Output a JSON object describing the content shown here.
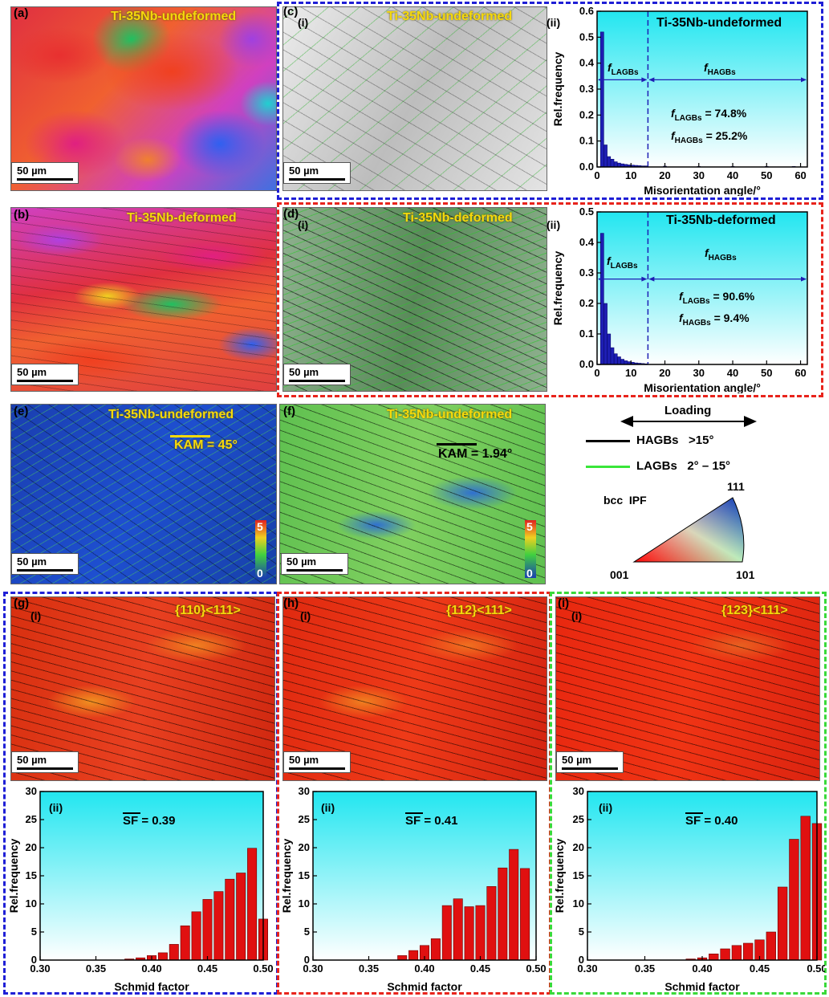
{
  "panels": {
    "a": {
      "label": "(a)",
      "title": "Ti-35Nb-undeformed",
      "scale": "50 µm"
    },
    "b": {
      "label": "(b)",
      "title": "Ti-35Nb-deformed",
      "scale": "50 µm"
    },
    "c": {
      "label": "(c)",
      "sub": "(i)",
      "title": "Ti-35Nb-undeformed",
      "scale": "50 µm"
    },
    "c2": {
      "sub": "(ii)",
      "title": "Ti-35Nb-undeformed",
      "f_lagbs": "LAGBs",
      "f_hagbs": "HAGBs",
      "val_lagbs": "= 74.8%",
      "val_hagbs": "= 25.2%"
    },
    "d": {
      "label": "(d)",
      "sub": "(i)",
      "title": "Ti-35Nb-deformed",
      "scale": "50 µm"
    },
    "d2": {
      "sub": "(ii)",
      "title": "Ti-35Nb-deformed",
      "f_lagbs": "LAGBs",
      "f_hagbs": "HAGBs",
      "val_lagbs": "= 90.6%",
      "val_hagbs": "= 9.4%"
    },
    "e": {
      "label": "(e)",
      "title": "Ti-35Nb-undeformed",
      "kam": "KAM = 45°",
      "scale": "50 µm",
      "cb_max": "5",
      "cb_min": "0"
    },
    "f": {
      "label": "(f)",
      "title": "Ti-35Nb-undeformed",
      "kam": "KAM = 1.94°",
      "scale": "50 µm",
      "cb_max": "5",
      "cb_min": "0"
    },
    "g": {
      "label": "(g)",
      "sub": "(i)",
      "title": "{110}<111>",
      "scale": "50 µm",
      "sub2": "(ii)",
      "sf": "SF = 0.39"
    },
    "h": {
      "label": "(h)",
      "sub": "(i)",
      "title": "{112}<111>",
      "scale": "50 µm",
      "sub2": "(ii)",
      "sf": "SF = 0.41"
    },
    "i": {
      "label": "(i)",
      "sub": "(i)",
      "title": "{123}<111>",
      "scale": "50 µm",
      "sub2": "(ii)",
      "sf": "SF = 0.40"
    }
  },
  "legend": {
    "loading": "Loading",
    "hagbs": "HAGBs   >15°",
    "lagbs": "LAGBs   2° – 15°",
    "ipf": "bcc  IPF",
    "v111": "111",
    "v001": "001",
    "v101": "101",
    "hagb_color": "#000000",
    "lagb_color": "#39e639"
  },
  "colors": {
    "blue": "#1f1fd6",
    "red": "#e8241c",
    "green": "#3ad93a",
    "bar_blue": "#1e1eb4",
    "bar_red": "#e01010"
  },
  "chart_data": [
    {
      "type": "bar",
      "title": "Ti-35Nb-undeformed",
      "xlabel": "Misorientation angle/°",
      "ylabel": "Rel.frequency",
      "xlim": [
        0,
        62
      ],
      "ylim": [
        0,
        0.6
      ],
      "xticks": [
        0,
        10,
        20,
        30,
        40,
        50,
        60
      ],
      "yticks": [
        0,
        0.1,
        0.2,
        0.3,
        0.4,
        0.5,
        0.6
      ],
      "threshold": 15,
      "x": [
        1.5,
        2.5,
        3.5,
        4.5,
        5.5,
        6.5,
        7.5,
        8.5,
        9.5,
        10.5,
        11.5,
        12.5,
        13.5,
        14.5,
        20,
        30,
        40,
        50,
        58
      ],
      "values": [
        0.52,
        0.085,
        0.04,
        0.03,
        0.02,
        0.015,
        0.012,
        0.01,
        0.008,
        0.007,
        0.006,
        0.005,
        0.004,
        0.004,
        0.003,
        0.002,
        0.002,
        0.002,
        0.002
      ]
    },
    {
      "type": "bar",
      "title": "Ti-35Nb-deformed",
      "xlabel": "Misorientation angle/°",
      "ylabel": "Rel.frequency",
      "xlim": [
        0,
        62
      ],
      "ylim": [
        0,
        0.5
      ],
      "xticks": [
        0,
        10,
        20,
        30,
        40,
        50,
        60
      ],
      "yticks": [
        0,
        0.1,
        0.2,
        0.3,
        0.4,
        0.5
      ],
      "threshold": 15,
      "x": [
        1.5,
        2.5,
        3.5,
        4.5,
        5.5,
        6.5,
        7.5,
        8.5,
        9.5,
        10.5,
        11.5,
        12.5,
        13.5,
        14.5
      ],
      "values": [
        0.43,
        0.2,
        0.1,
        0.055,
        0.035,
        0.025,
        0.017,
        0.012,
        0.009,
        0.007,
        0.005,
        0.004,
        0.003,
        0.002
      ]
    },
    {
      "type": "bar",
      "xlabel": "Schmid factor",
      "ylabel": "Rel.frequency",
      "xlim": [
        0.3,
        0.5
      ],
      "ylim": [
        0,
        30
      ],
      "xticks": [
        0.3,
        0.35,
        0.4,
        0.45,
        0.5
      ],
      "yticks": [
        0,
        5,
        10,
        15,
        20,
        25,
        30
      ],
      "x": [
        0.38,
        0.39,
        0.4,
        0.41,
        0.42,
        0.43,
        0.44,
        0.45,
        0.46,
        0.47,
        0.48,
        0.49,
        0.5
      ],
      "values": [
        0.2,
        0.4,
        0.8,
        1.3,
        2.8,
        6.1,
        8.6,
        10.8,
        12.2,
        14.4,
        15.5,
        19.9,
        7.3
      ]
    },
    {
      "type": "bar",
      "xlabel": "Schmid factor",
      "ylabel": "Rel.frequency",
      "xlim": [
        0.3,
        0.5
      ],
      "ylim": [
        0,
        30
      ],
      "xticks": [
        0.3,
        0.35,
        0.4,
        0.45,
        0.5
      ],
      "yticks": [
        0,
        5,
        10,
        15,
        20,
        25,
        30
      ],
      "x": [
        0.38,
        0.39,
        0.4,
        0.41,
        0.42,
        0.43,
        0.44,
        0.45,
        0.46,
        0.47,
        0.48,
        0.49,
        0.5
      ],
      "values": [
        0.8,
        1.7,
        2.6,
        3.8,
        9.7,
        10.9,
        9.5,
        9.7,
        13.1,
        16.4,
        19.7,
        16.3,
        0.0
      ]
    },
    {
      "type": "bar",
      "xlabel": "Schmid factor",
      "ylabel": "Rel.frequency",
      "xlim": [
        0.3,
        0.5
      ],
      "ylim": [
        0,
        30
      ],
      "xticks": [
        0.3,
        0.35,
        0.4,
        0.45,
        0.5
      ],
      "yticks": [
        0,
        5,
        10,
        15,
        20,
        25,
        30
      ],
      "x": [
        0.39,
        0.4,
        0.41,
        0.42,
        0.43,
        0.44,
        0.45,
        0.46,
        0.47,
        0.48,
        0.49,
        0.5
      ],
      "values": [
        0.2,
        0.4,
        1.1,
        2.0,
        2.6,
        3.0,
        3.6,
        5.0,
        13.0,
        21.5,
        25.6,
        24.3
      ]
    }
  ]
}
